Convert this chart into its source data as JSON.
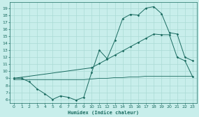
{
  "xlabel": "Humidex (Indice chaleur)",
  "bg_color": "#c8eeeb",
  "grid_color": "#aadad5",
  "line_color": "#1a6b60",
  "xlim": [
    -0.5,
    23.5
  ],
  "ylim": [
    5.5,
    19.8
  ],
  "xticks": [
    0,
    1,
    2,
    3,
    4,
    5,
    6,
    7,
    8,
    9,
    10,
    11,
    12,
    13,
    14,
    15,
    16,
    17,
    18,
    19,
    20,
    21,
    22,
    23
  ],
  "yticks": [
    6,
    7,
    8,
    9,
    10,
    11,
    12,
    13,
    14,
    15,
    16,
    17,
    18,
    19
  ],
  "line1_x": [
    0,
    1,
    2,
    3,
    4,
    5,
    6,
    7,
    8,
    9,
    10,
    11,
    12,
    13,
    14,
    15,
    16,
    17,
    18,
    19,
    20,
    21,
    22,
    23
  ],
  "line1_y": [
    9.0,
    9.0,
    8.5,
    7.5,
    6.8,
    6.0,
    6.5,
    6.3,
    5.9,
    6.3,
    9.8,
    13.0,
    11.8,
    14.4,
    17.5,
    18.1,
    18.0,
    19.0,
    19.2,
    18.2,
    15.5,
    15.3,
    12.0,
    11.5
  ],
  "line2_x": [
    0,
    10,
    11,
    12,
    13,
    14,
    15,
    16,
    17,
    18,
    19,
    20,
    21,
    22,
    23
  ],
  "line2_y": [
    9.0,
    10.5,
    11.1,
    11.7,
    12.3,
    12.9,
    13.5,
    14.1,
    14.7,
    15.3,
    15.2,
    15.2,
    12.0,
    11.5,
    9.2
  ],
  "line3_x": [
    0,
    1,
    2,
    3,
    4,
    5,
    6,
    7,
    8,
    9,
    10,
    11,
    12,
    13,
    14,
    15,
    16,
    17,
    18,
    19,
    20,
    21,
    22,
    23
  ],
  "line3_y": [
    8.8,
    8.8,
    8.8,
    8.8,
    8.8,
    8.8,
    8.8,
    8.8,
    8.8,
    8.8,
    8.9,
    9.0,
    9.0,
    9.1,
    9.1,
    9.2,
    9.2,
    9.3,
    9.3,
    9.3,
    9.3,
    9.3,
    9.3,
    9.3
  ]
}
